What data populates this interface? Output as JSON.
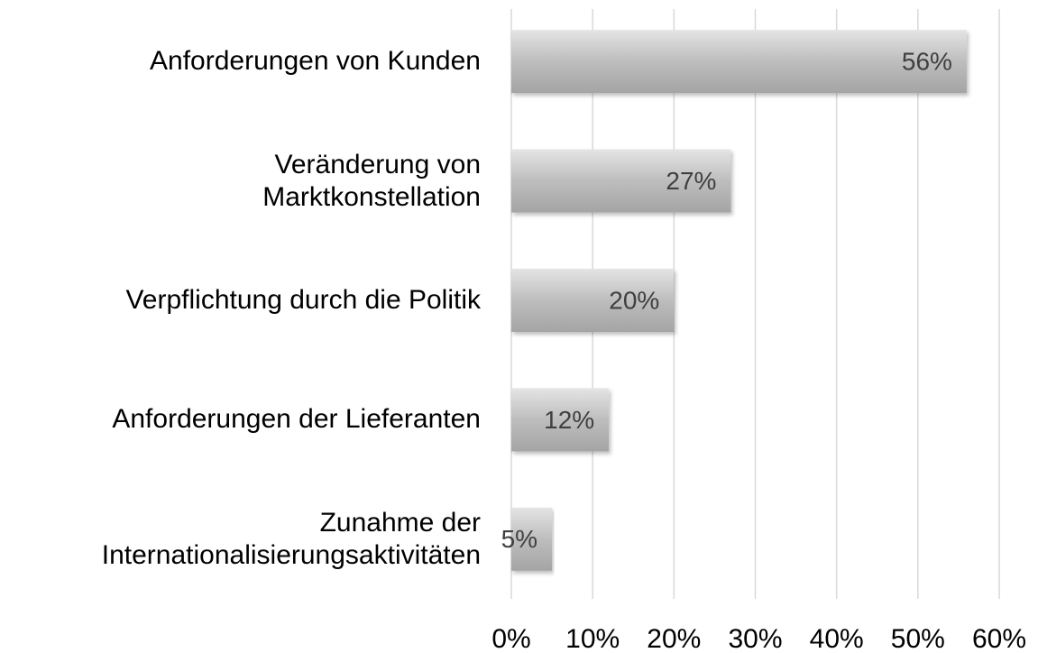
{
  "chart_data": {
    "type": "bar",
    "orientation": "horizontal",
    "categories": [
      "Anforderungen von Kunden",
      "Veränderung von\nMarktkonstellation",
      "Verpflichtung durch die Politik",
      "Anforderungen der Lieferanten",
      "Zunahme der\nInternationalisierungsaktivitäten"
    ],
    "values": [
      56,
      27,
      20,
      12,
      5
    ],
    "value_labels": [
      "56%",
      "27%",
      "20%",
      "12%",
      "5%"
    ],
    "color": "#bdbdbd",
    "xlim": [
      0,
      60
    ],
    "xticks": [
      {
        "value": 0,
        "label": "0%"
      },
      {
        "value": 10,
        "label": "10%"
      },
      {
        "value": 20,
        "label": "20%"
      },
      {
        "value": 30,
        "label": "30%"
      },
      {
        "value": 40,
        "label": "40%"
      },
      {
        "value": 50,
        "label": "50%"
      },
      {
        "value": 60,
        "label": "60%"
      }
    ],
    "grid": true
  }
}
